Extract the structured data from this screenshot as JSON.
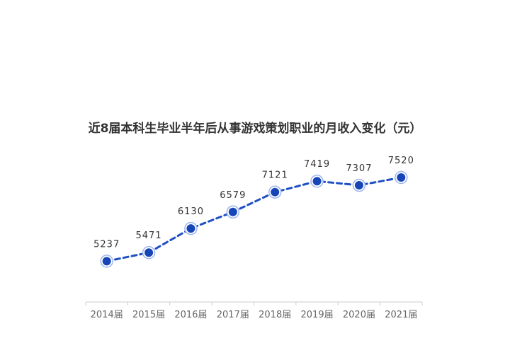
{
  "chart_data": {
    "type": "line",
    "title": "近8届本科生毕业半年后从事游戏策划职业的月收入变化（元）",
    "categories": [
      "2014届",
      "2015届",
      "2016届",
      "2017届",
      "2018届",
      "2019届",
      "2020届",
      "2021届"
    ],
    "series": [
      {
        "values": [
          5237,
          5471,
          6130,
          6579,
          7121,
          7419,
          7307,
          7520
        ]
      }
    ],
    "data_labels": [
      "5237",
      "5471",
      "6130",
      "6579",
      "7121",
      "7419",
      "7307",
      "7520"
    ],
    "ylim": [
      3200,
      8600
    ],
    "line_style": "dashed",
    "markers": "filled-circle-with-halo",
    "grid": false,
    "legend": "none",
    "colors": {
      "line": "#1f4fc4",
      "marker": "#1745b8",
      "halo": "#9db6ee",
      "axis": "#cccccc",
      "text": "#333333"
    }
  }
}
